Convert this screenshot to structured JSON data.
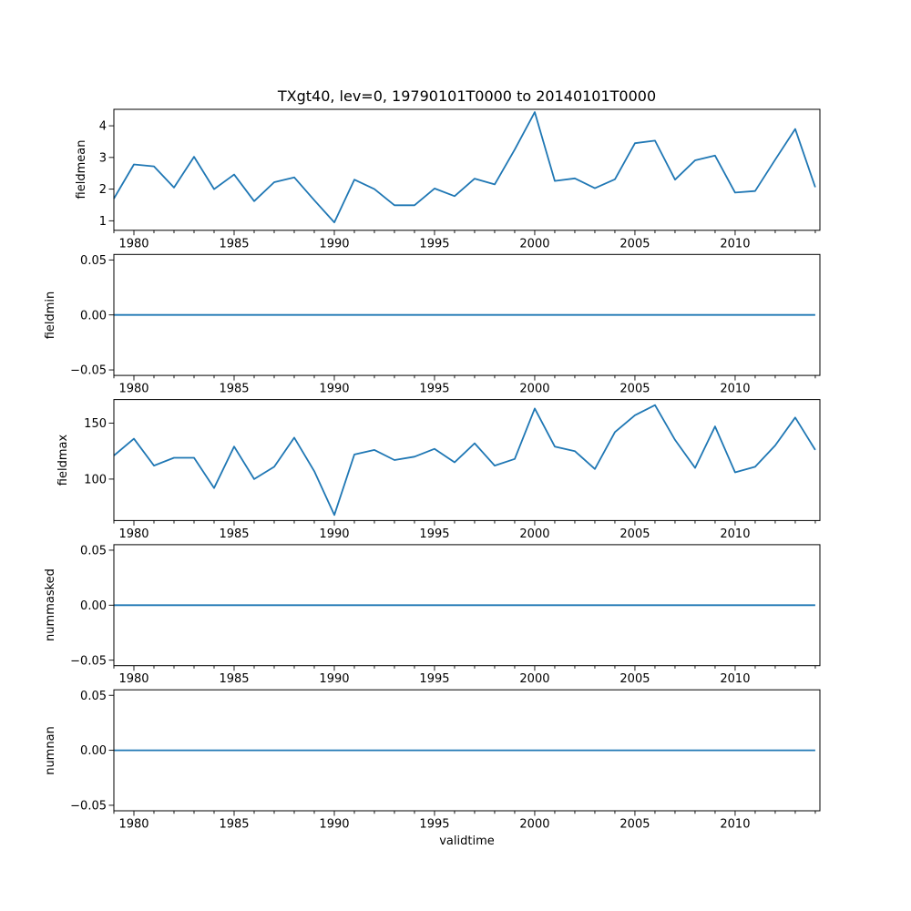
{
  "chart_data": {
    "type": "line",
    "title": "TXgt40, lev=0, 19790101T0000 to 20140101T0000",
    "xlabel": "validtime",
    "grid": false,
    "legend": null,
    "line_color": "#1f77b4",
    "x": [
      1979,
      1980,
      1981,
      1982,
      1983,
      1984,
      1985,
      1986,
      1987,
      1988,
      1989,
      1990,
      1991,
      1992,
      1993,
      1994,
      1995,
      1996,
      1997,
      1998,
      1999,
      2000,
      2001,
      2002,
      2003,
      2004,
      2005,
      2006,
      2007,
      2008,
      2009,
      2010,
      2011,
      2012,
      2013,
      2014
    ],
    "xlim": [
      1979,
      2014.23
    ],
    "xticks": [
      1980,
      1985,
      1990,
      1995,
      2000,
      2005,
      2010
    ],
    "x_minor_step": 1,
    "series": [
      {
        "name": "fieldmean",
        "ylabel": "fieldmean",
        "ylim": [
          0.7,
          4.52
        ],
        "ytick_values": [
          1,
          2,
          3,
          4
        ],
        "ytick_labels": [
          "1",
          "2",
          "3",
          "4"
        ],
        "color": "#1f77b4",
        "values": [
          1.7,
          2.78,
          2.72,
          2.05,
          3.02,
          2.0,
          2.46,
          1.62,
          2.22,
          2.37,
          1.65,
          0.95,
          2.3,
          2.0,
          1.49,
          1.49,
          2.02,
          1.78,
          2.33,
          2.15,
          3.25,
          4.43,
          2.26,
          2.34,
          2.03,
          2.31,
          3.45,
          3.53,
          2.3,
          2.91,
          3.06,
          1.89,
          1.94,
          2.93,
          3.9,
          2.06
        ]
      },
      {
        "name": "fieldmin",
        "ylabel": "fieldmin",
        "ylim": [
          -0.055,
          0.055
        ],
        "ytick_values": [
          0.05,
          0.0,
          -0.05
        ],
        "ytick_labels": [
          "0.05",
          "0.00",
          "−0.05"
        ],
        "color": "#1f77b4",
        "values": [
          0,
          0,
          0,
          0,
          0,
          0,
          0,
          0,
          0,
          0,
          0,
          0,
          0,
          0,
          0,
          0,
          0,
          0,
          0,
          0,
          0,
          0,
          0,
          0,
          0,
          0,
          0,
          0,
          0,
          0,
          0,
          0,
          0,
          0,
          0,
          0
        ]
      },
      {
        "name": "fieldmax",
        "ylabel": "fieldmax",
        "ylim": [
          63,
          171
        ],
        "ytick_values": [
          100,
          150
        ],
        "ytick_labels": [
          "100",
          "150"
        ],
        "color": "#1f77b4",
        "values": [
          121,
          136,
          112,
          119,
          119,
          92,
          129,
          100,
          111,
          137,
          107,
          68,
          122,
          126,
          117,
          120,
          127,
          115,
          132,
          112,
          118,
          163,
          129,
          125,
          109,
          142,
          157,
          166,
          135,
          110,
          147,
          106,
          111,
          130,
          155,
          126
        ]
      },
      {
        "name": "nummasked",
        "ylabel": "nummasked",
        "ylim": [
          -0.055,
          0.055
        ],
        "ytick_values": [
          0.05,
          0.0,
          -0.05
        ],
        "ytick_labels": [
          "0.05",
          "0.00",
          "−0.05"
        ],
        "color": "#1f77b4",
        "values": [
          0,
          0,
          0,
          0,
          0,
          0,
          0,
          0,
          0,
          0,
          0,
          0,
          0,
          0,
          0,
          0,
          0,
          0,
          0,
          0,
          0,
          0,
          0,
          0,
          0,
          0,
          0,
          0,
          0,
          0,
          0,
          0,
          0,
          0,
          0,
          0
        ]
      },
      {
        "name": "numnan",
        "ylabel": "numnan",
        "ylim": [
          -0.055,
          0.055
        ],
        "ytick_values": [
          0.05,
          0.0,
          -0.05
        ],
        "ytick_labels": [
          "0.05",
          "0.00",
          "−0.05"
        ],
        "color": "#1f77b4",
        "values": [
          0,
          0,
          0,
          0,
          0,
          0,
          0,
          0,
          0,
          0,
          0,
          0,
          0,
          0,
          0,
          0,
          0,
          0,
          0,
          0,
          0,
          0,
          0,
          0,
          0,
          0,
          0,
          0,
          0,
          0,
          0,
          0,
          0,
          0,
          0,
          0
        ]
      }
    ]
  }
}
